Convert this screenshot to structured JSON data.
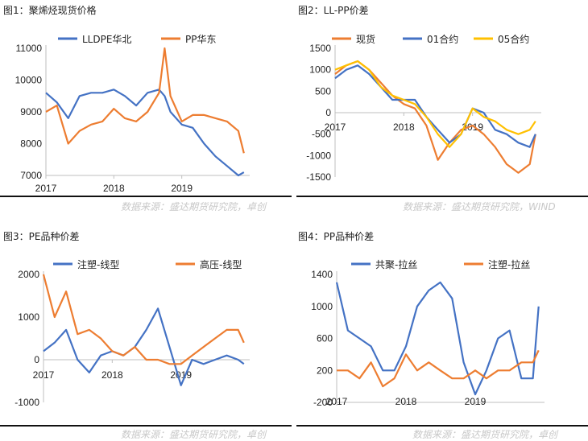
{
  "sources": {
    "main": "数据来源：盛达期货研究院，卓创",
    "wind": "数据来源：盛达期货研究院，WIND"
  },
  "colors": {
    "blue": "#4472C4",
    "orange": "#ED7D31",
    "yellow": "#FFC000"
  },
  "chart_data": [
    {
      "type": "line",
      "title": "图1：聚烯烃现货价格",
      "source": "数据来源：盛达期货研究院，卓创",
      "xticks": [
        "2017",
        "2018",
        "2019"
      ],
      "yticks": [
        11000,
        10000,
        9000,
        8000,
        7000
      ],
      "ylim": [
        7000,
        11000
      ],
      "x": [
        "2017-01",
        "2017-03",
        "2017-05",
        "2017-07",
        "2017-09",
        "2017-11",
        "2018-01",
        "2018-03",
        "2018-05",
        "2018-07",
        "2018-09",
        "2018-10",
        "2018-11",
        "2019-01",
        "2019-03",
        "2019-05",
        "2019-07",
        "2019-09",
        "2019-11",
        "2019-12"
      ],
      "series": [
        {
          "name": "LLDPE华北",
          "color": "#4472C4",
          "values": [
            9600,
            9300,
            8800,
            9500,
            9600,
            9600,
            9700,
            9500,
            9200,
            9600,
            9700,
            9500,
            9000,
            8600,
            8500,
            8000,
            7600,
            7300,
            7000,
            7100
          ]
        },
        {
          "name": "PP华东",
          "color": "#ED7D31",
          "values": [
            9000,
            9200,
            8000,
            8400,
            8600,
            8700,
            9100,
            8800,
            8700,
            9000,
            9600,
            11000,
            9500,
            8700,
            8900,
            8900,
            8800,
            8700,
            8400,
            7700
          ]
        }
      ]
    },
    {
      "type": "line",
      "title": "图2：LL-PP价差",
      "source": "数据来源：盛达期货研究院，WIND",
      "xticks": [
        "2017",
        "2018",
        "2019"
      ],
      "yticks": [
        1500,
        1000,
        500,
        0,
        -500,
        -1000,
        -1500
      ],
      "ylim": [
        -1500,
        1500
      ],
      "x": [
        "2017-01",
        "2017-03",
        "2017-05",
        "2017-07",
        "2017-09",
        "2017-11",
        "2018-01",
        "2018-03",
        "2018-05",
        "2018-07",
        "2018-09",
        "2018-11",
        "2019-01",
        "2019-03",
        "2019-05",
        "2019-07",
        "2019-09",
        "2019-11",
        "2019-12"
      ],
      "series": [
        {
          "name": "现货",
          "color": "#ED7D31",
          "values": [
            900,
            1100,
            1200,
            1000,
            700,
            400,
            200,
            100,
            -300,
            -1100,
            -700,
            -400,
            -300,
            -500,
            -800,
            -1200,
            -1400,
            -1200,
            -500
          ]
        },
        {
          "name": "01合约",
          "color": "#4472C4",
          "values": [
            800,
            1000,
            1100,
            900,
            600,
            300,
            300,
            300,
            -100,
            -400,
            -700,
            -500,
            100,
            0,
            -400,
            -500,
            -700,
            -800,
            -500
          ]
        },
        {
          "name": "05合约",
          "color": "#FFC000",
          "values": [
            1000,
            1100,
            1200,
            1000,
            600,
            400,
            300,
            200,
            -100,
            -500,
            -800,
            -500,
            100,
            -100,
            -200,
            -400,
            -500,
            -400,
            -200
          ]
        }
      ]
    },
    {
      "type": "line",
      "title": "图3：PE品种价差",
      "source": "数据来源：盛达期货研究院，卓创",
      "xticks": [
        "2017",
        "2018",
        "2019"
      ],
      "yticks": [
        2000,
        1000,
        0,
        -1000
      ],
      "ylim": [
        -1000,
        2000
      ],
      "x": [
        "2017-01",
        "2017-03",
        "2017-05",
        "2017-07",
        "2017-09",
        "2017-11",
        "2018-01",
        "2018-03",
        "2018-05",
        "2018-07",
        "2018-09",
        "2018-11",
        "2019-01",
        "2019-03",
        "2019-05",
        "2019-07",
        "2019-09",
        "2019-11",
        "2019-12"
      ],
      "series": [
        {
          "name": "注塑-线型",
          "color": "#4472C4",
          "values": [
            200,
            400,
            700,
            0,
            -300,
            100,
            200,
            100,
            300,
            700,
            1200,
            300,
            -600,
            0,
            -100,
            0,
            100,
            0,
            -100
          ]
        },
        {
          "name": "高压-线型",
          "color": "#ED7D31",
          "values": [
            2000,
            1000,
            1600,
            600,
            700,
            500,
            200,
            100,
            300,
            0,
            0,
            -100,
            -100,
            100,
            300,
            500,
            700,
            700,
            400
          ]
        }
      ]
    },
    {
      "type": "line",
      "title": "图4：PP品种价差",
      "source": "数据来源：盛达期货研究院，卓创",
      "xticks": [
        "2017",
        "2018",
        "2019"
      ],
      "yticks": [
        1400,
        1000,
        600,
        200,
        -200
      ],
      "ylim": [
        -200,
        1400
      ],
      "x": [
        "2017-01",
        "2017-03",
        "2017-05",
        "2017-07",
        "2017-09",
        "2017-11",
        "2018-01",
        "2018-03",
        "2018-05",
        "2018-07",
        "2018-09",
        "2018-11",
        "2019-01",
        "2019-03",
        "2019-05",
        "2019-07",
        "2019-09",
        "2019-11",
        "2019-12"
      ],
      "series": [
        {
          "name": "共聚-拉丝",
          "color": "#4472C4",
          "values": [
            1300,
            700,
            600,
            500,
            200,
            200,
            500,
            1000,
            1200,
            1300,
            1100,
            300,
            -100,
            200,
            600,
            700,
            100,
            100,
            1000
          ]
        },
        {
          "name": "注塑-拉丝",
          "color": "#ED7D31",
          "values": [
            200,
            200,
            100,
            300,
            0,
            100,
            400,
            200,
            300,
            200,
            100,
            100,
            200,
            100,
            200,
            200,
            300,
            300,
            450
          ]
        }
      ]
    }
  ]
}
